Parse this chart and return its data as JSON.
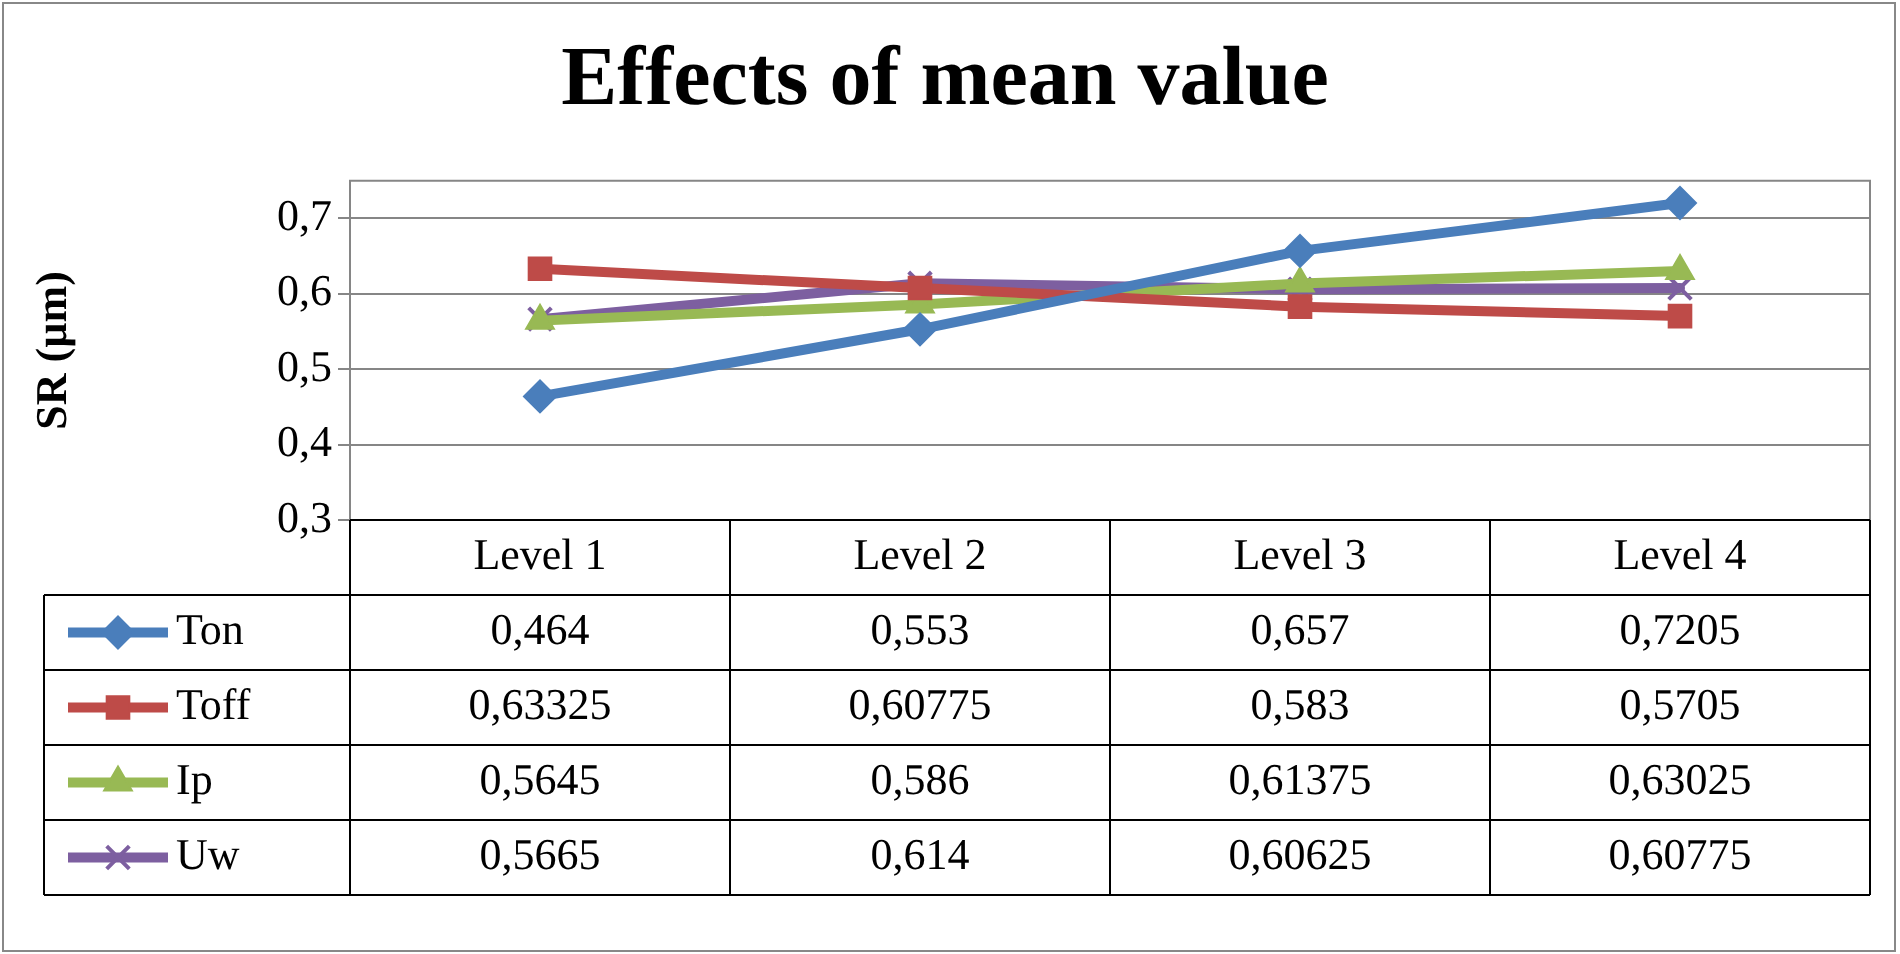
{
  "chart_data": {
    "type": "line",
    "title": "Effects of mean value",
    "ylabel": "SR (µm)",
    "categories": [
      "Level 1",
      "Level 2",
      "Level 3",
      "Level 4"
    ],
    "series": [
      {
        "name": "Ton",
        "color": "#4a7ebb",
        "marker": "diamond",
        "values": [
          0.464,
          0.553,
          0.657,
          0.7205
        ],
        "value_labels": [
          "0,464",
          "0,553",
          "0,657",
          "0,7205"
        ]
      },
      {
        "name": "Toff",
        "color": "#be4b48",
        "marker": "square",
        "values": [
          0.63325,
          0.60775,
          0.583,
          0.5705
        ],
        "value_labels": [
          "0,63325",
          "0,60775",
          "0,583",
          "0,5705"
        ]
      },
      {
        "name": "Ip",
        "color": "#98b954",
        "marker": "triangle",
        "values": [
          0.5645,
          0.586,
          0.61375,
          0.63025
        ],
        "value_labels": [
          "0,5645",
          "0,586",
          "0,61375",
          "0,63025"
        ]
      },
      {
        "name": "Uw",
        "color": "#7d5fa0",
        "marker": "cross",
        "values": [
          0.5665,
          0.614,
          0.60625,
          0.60775
        ],
        "value_labels": [
          "0,5665",
          "0,614",
          "0,60625",
          "0,60775"
        ]
      }
    ],
    "ylim": [
      0.3,
      0.75
    ],
    "yticks": [
      {
        "value": 0.3,
        "label": "0,3"
      },
      {
        "value": 0.4,
        "label": "0,4"
      },
      {
        "value": 0.5,
        "label": "0,5"
      },
      {
        "value": 0.6,
        "label": "0,6"
      },
      {
        "value": 0.7,
        "label": "0,7"
      }
    ],
    "grid": "y",
    "legend": "bottom left"
  }
}
